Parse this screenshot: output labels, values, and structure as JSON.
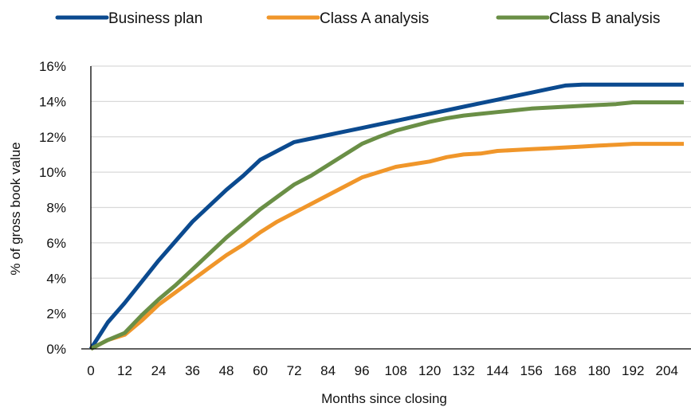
{
  "chart_data": {
    "type": "line",
    "title": "",
    "xlabel": "Months since closing",
    "ylabel": "% of gross book value",
    "x": [
      0,
      6,
      12,
      18,
      24,
      30,
      36,
      42,
      48,
      54,
      60,
      66,
      72,
      78,
      84,
      90,
      96,
      102,
      108,
      114,
      120,
      126,
      132,
      138,
      144,
      150,
      156,
      162,
      168,
      174,
      180,
      186,
      192,
      198,
      204,
      210
    ],
    "x_tick_labels": [
      "0",
      "12",
      "24",
      "36",
      "48",
      "60",
      "72",
      "84",
      "96",
      "108",
      "120",
      "132",
      "144",
      "156",
      "168",
      "180",
      "192",
      "204"
    ],
    "y_tick_labels": [
      "0%",
      "2%",
      "4%",
      "6%",
      "8%",
      "10%",
      "12%",
      "14%",
      "16%"
    ],
    "xlim": [
      0,
      210
    ],
    "ylim": [
      0,
      16
    ],
    "grid": "horizontal",
    "legend_position": "top",
    "series": [
      {
        "name": "Business plan",
        "color": "#0b4a8f",
        "values": [
          0,
          1.5,
          2.6,
          3.8,
          5.0,
          6.1,
          7.2,
          8.1,
          9.0,
          9.8,
          10.7,
          11.2,
          11.7,
          11.9,
          12.1,
          12.3,
          12.5,
          12.7,
          12.9,
          13.1,
          13.3,
          13.5,
          13.7,
          13.9,
          14.1,
          14.3,
          14.5,
          14.7,
          14.9,
          14.95,
          14.95,
          14.95,
          14.95,
          14.95,
          14.95,
          14.95
        ]
      },
      {
        "name": "Class A analysis",
        "color": "#f0962a",
        "values": [
          0,
          0.5,
          0.8,
          1.6,
          2.5,
          3.2,
          3.9,
          4.6,
          5.3,
          5.9,
          6.6,
          7.2,
          7.7,
          8.2,
          8.7,
          9.2,
          9.7,
          10.0,
          10.3,
          10.45,
          10.6,
          10.85,
          11.0,
          11.05,
          11.2,
          11.25,
          11.3,
          11.35,
          11.4,
          11.45,
          11.5,
          11.55,
          11.6,
          11.6,
          11.6,
          11.6
        ]
      },
      {
        "name": "Class B analysis",
        "color": "#6a8f46",
        "values": [
          0,
          0.5,
          0.9,
          1.9,
          2.8,
          3.6,
          4.5,
          5.4,
          6.3,
          7.1,
          7.9,
          8.6,
          9.3,
          9.8,
          10.4,
          11.0,
          11.6,
          12.0,
          12.35,
          12.6,
          12.85,
          13.05,
          13.2,
          13.3,
          13.4,
          13.5,
          13.6,
          13.65,
          13.7,
          13.75,
          13.8,
          13.85,
          13.95,
          13.95,
          13.95,
          13.95
        ]
      }
    ]
  }
}
